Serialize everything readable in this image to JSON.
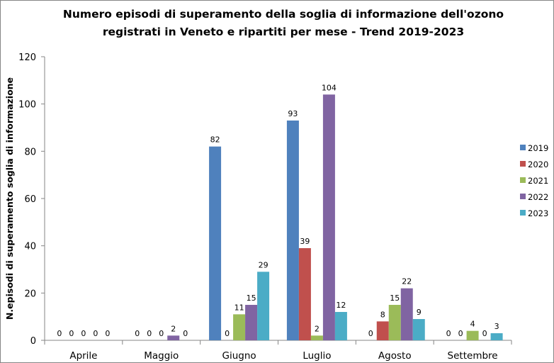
{
  "chart_data": {
    "type": "bar",
    "title_line1": "Numero episodi di superamento della soglia di informazione dell'ozono",
    "title_line2": "registrati in Veneto e ripartiti per mese - Trend 2019-2023",
    "xlabel": "",
    "ylabel": "N.episodi di superamento soglia di informazione",
    "ylim": [
      0,
      120
    ],
    "yticks": [
      0,
      20,
      40,
      60,
      80,
      100,
      120
    ],
    "grid": false,
    "legend_position": "right",
    "categories": [
      "Aprile",
      "Maggio",
      "Giugno",
      "Luglio",
      "Agosto",
      "Settembre"
    ],
    "series": [
      {
        "name": "2019",
        "color": "#4F81BD",
        "values": [
          0,
          0,
          82,
          93,
          0,
          0
        ]
      },
      {
        "name": "2020",
        "color": "#C0504D",
        "values": [
          0,
          0,
          0,
          39,
          8,
          0
        ]
      },
      {
        "name": "2021",
        "color": "#9BBB59",
        "values": [
          0,
          0,
          11,
          2,
          15,
          4
        ]
      },
      {
        "name": "2022",
        "color": "#8064A2",
        "values": [
          0,
          2,
          15,
          104,
          22,
          0
        ]
      },
      {
        "name": "2023",
        "color": "#4BACC6",
        "values": [
          0,
          0,
          29,
          12,
          9,
          3
        ]
      }
    ]
  }
}
